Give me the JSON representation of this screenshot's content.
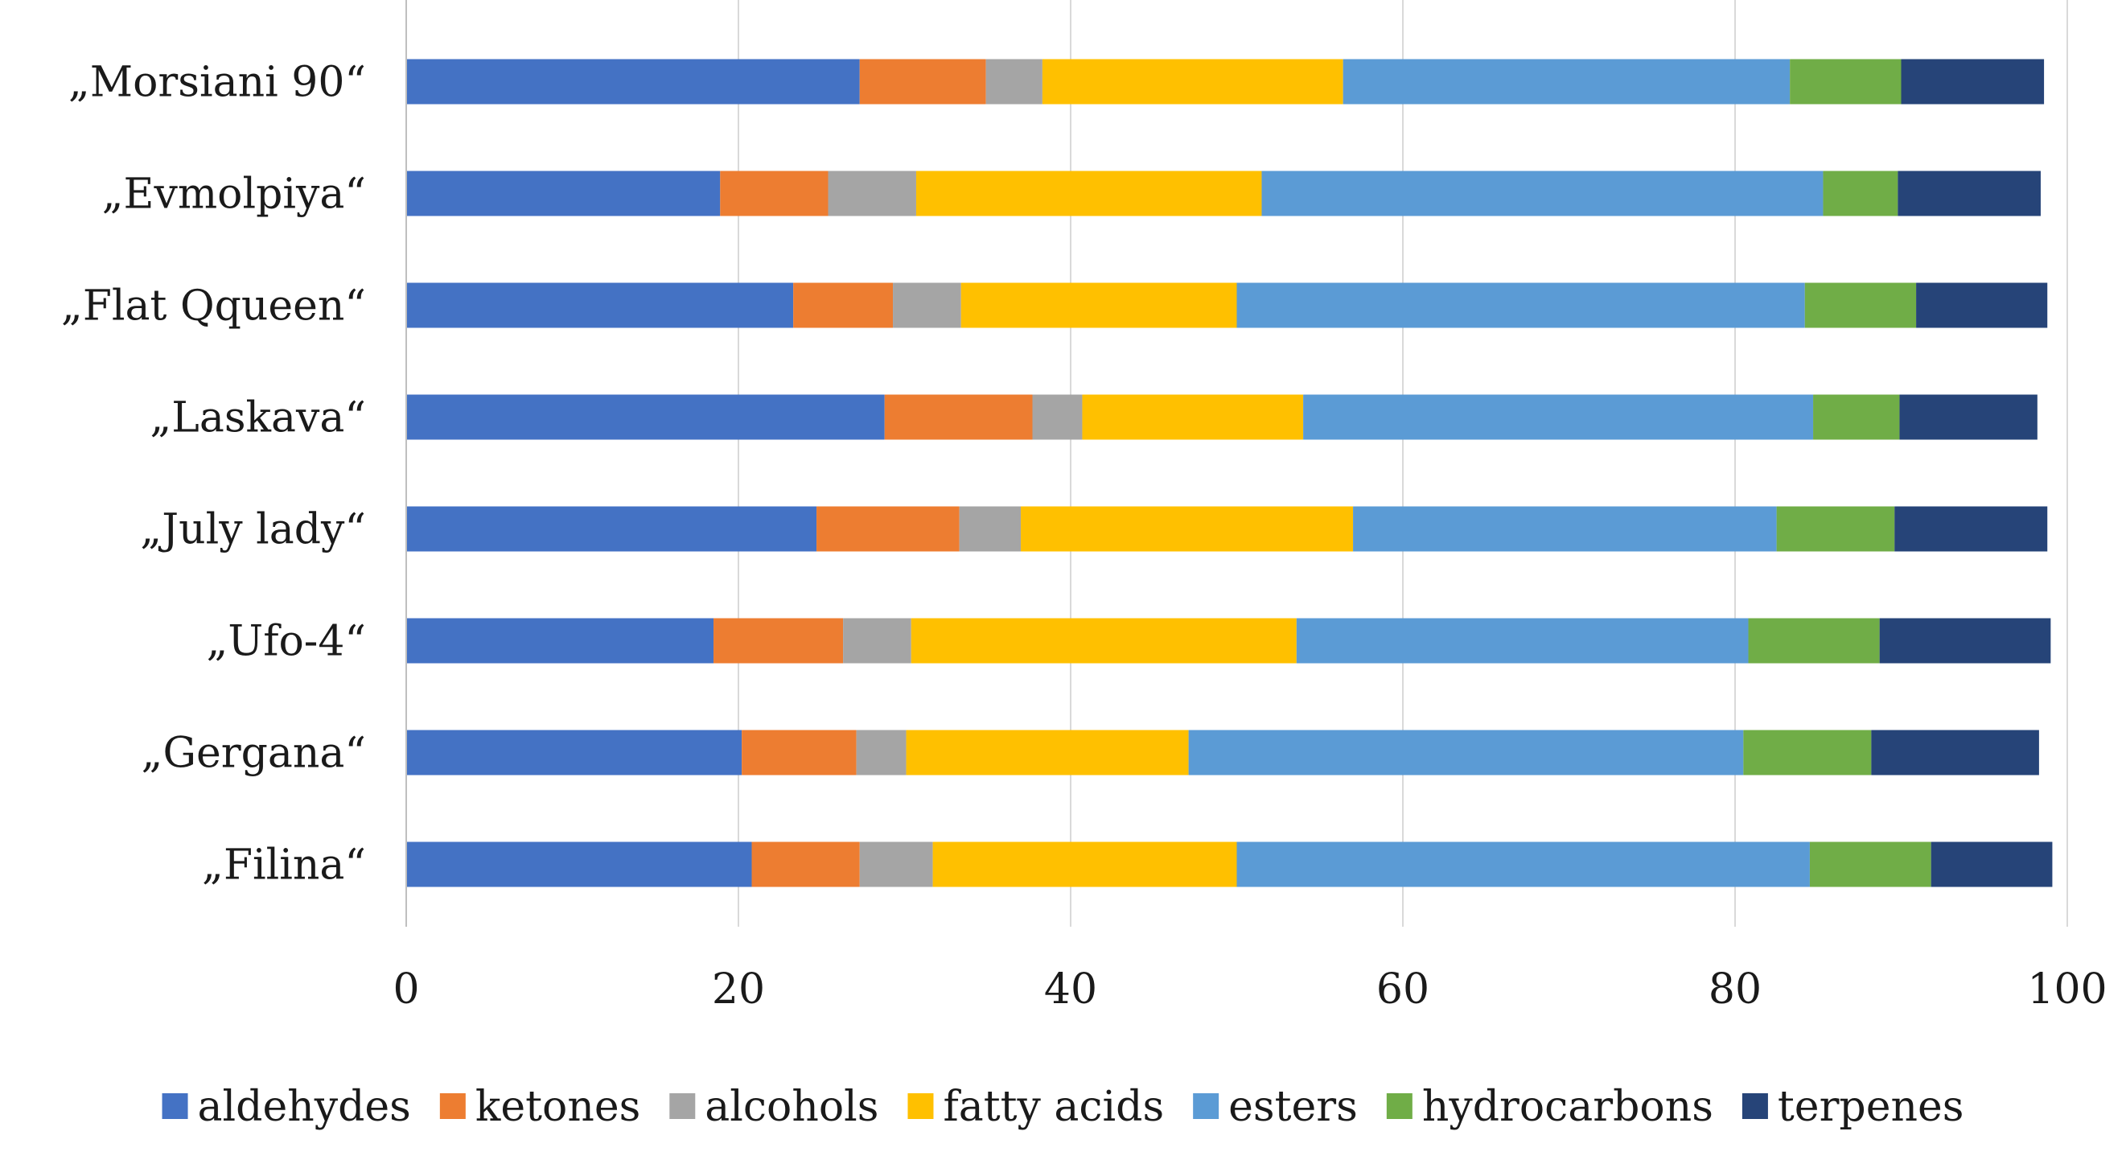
{
  "chart_data": {
    "type": "bar",
    "orientation": "horizontal",
    "stacked": true,
    "title": "",
    "xlabel": "",
    "ylabel": "",
    "xlim": [
      0,
      100
    ],
    "x_ticks": [
      "0",
      "20",
      "40",
      "60",
      "80",
      "100"
    ],
    "grid": true,
    "legend_position": "bottom",
    "categories": [
      "„Morsiani 90“",
      "„Evmolpiya“",
      "„Flat Qqueen“",
      "„Laskava“",
      "„July lady“",
      "„Ufo-4“",
      "„Gergana“",
      "„Filina“"
    ],
    "series": [
      {
        "name": "aldehydes",
        "color": "#4472C4",
        "values": [
          27.3,
          18.9,
          23.3,
          28.8,
          24.7,
          18.5,
          20.2,
          20.8
        ]
      },
      {
        "name": "ketones",
        "color": "#ED7D31",
        "values": [
          7.6,
          6.5,
          6.0,
          8.9,
          8.6,
          7.8,
          6.9,
          6.5
        ]
      },
      {
        "name": "alcohols",
        "color": "#A5A5A5",
        "values": [
          3.4,
          5.3,
          4.1,
          3.0,
          3.7,
          4.1,
          3.0,
          4.4
        ]
      },
      {
        "name": "fatty acids",
        "color": "#FFC000",
        "values": [
          18.1,
          20.8,
          16.6,
          13.3,
          20.0,
          23.2,
          17.0,
          18.3
        ]
      },
      {
        "name": "esters",
        "color": "#5B9BD5",
        "values": [
          26.9,
          33.8,
          34.2,
          30.7,
          25.5,
          27.2,
          33.4,
          34.5
        ]
      },
      {
        "name": "hydrocarbons",
        "color": "#70AD47",
        "values": [
          6.7,
          4.5,
          6.7,
          5.2,
          7.1,
          7.9,
          7.7,
          7.3
        ]
      },
      {
        "name": "terpenes",
        "color": "#264478",
        "values": [
          8.6,
          8.6,
          7.9,
          8.3,
          9.2,
          10.3,
          10.1,
          7.3
        ]
      }
    ]
  }
}
